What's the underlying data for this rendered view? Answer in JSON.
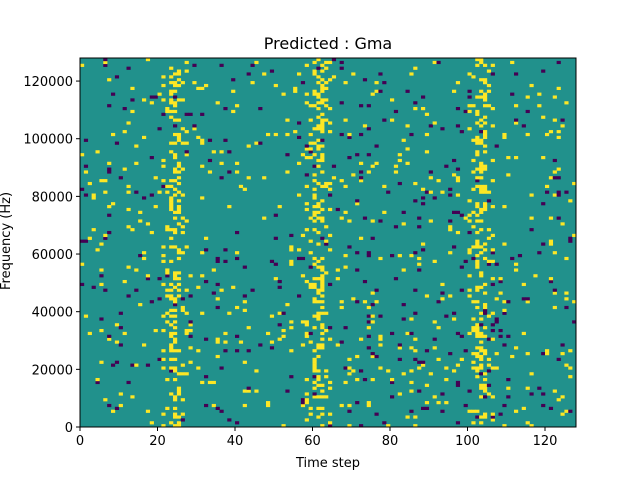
{
  "chart_data": {
    "type": "heatmap",
    "title": "Predicted : Gma",
    "xlabel": "Time step",
    "ylabel": "Frequency (Hz)",
    "xlim": [
      0,
      128
    ],
    "ylim": [
      0,
      128000
    ],
    "x_ticks": [
      0,
      20,
      40,
      60,
      80,
      100,
      120
    ],
    "y_ticks": [
      0,
      20000,
      40000,
      60000,
      80000,
      100000,
      120000
    ],
    "x_tick_labels": [
      "0",
      "20",
      "40",
      "60",
      "80",
      "100",
      "120"
    ],
    "y_tick_labels": [
      "0",
      "20000",
      "40000",
      "60000",
      "80000",
      "100000",
      "120000"
    ],
    "n_time_steps": 128,
    "n_frequency_bins": 128,
    "colormap": "viridis",
    "background_level": 0.5,
    "colors": {
      "low": "#440154",
      "mid": "#21918c",
      "high": "#fde725"
    },
    "grid": false,
    "legend": "none",
    "bright_bands_x": [
      24,
      61,
      103
    ],
    "dark_band_x": [
      74,
      110
    ]
  }
}
